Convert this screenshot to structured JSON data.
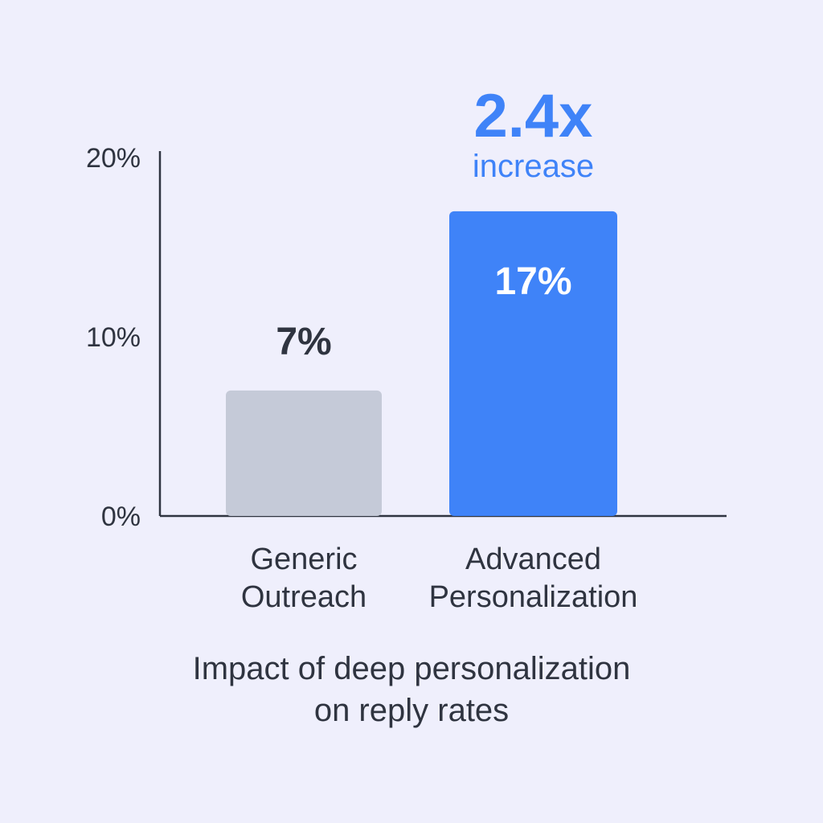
{
  "chart_data": {
    "type": "bar",
    "categories": [
      [
        "Generic",
        "Outreach"
      ],
      [
        "Advanced",
        "Personalization"
      ]
    ],
    "values": [
      7,
      17
    ],
    "value_labels": [
      "7%",
      "17%"
    ],
    "y_ticks": [
      "0%",
      "10%",
      "20%"
    ],
    "ylim": [
      0,
      20
    ],
    "grid": false,
    "bar_colors": [
      "#c5cad8",
      "#3f83f8"
    ],
    "value_label_colors": [
      "#2f3440",
      "#ffffff"
    ],
    "callout": {
      "value": "2.4x",
      "text": "increase",
      "color": "#3f83f8"
    },
    "caption": [
      "Impact of deep personalization",
      "on reply rates"
    ]
  }
}
